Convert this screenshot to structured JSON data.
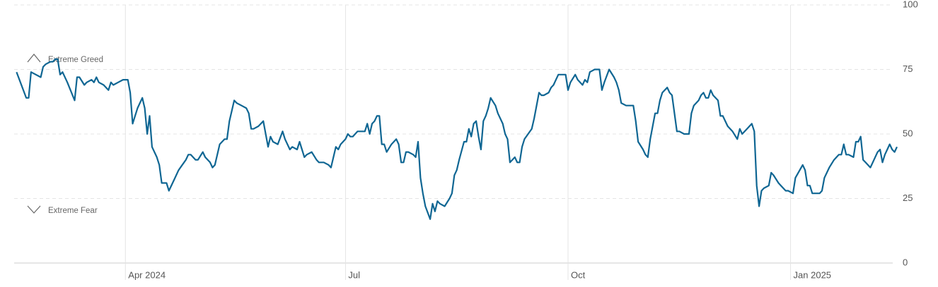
{
  "chart_data": {
    "type": "line",
    "annotations": [
      "Extreme Greed",
      "Extreme Fear"
    ],
    "x": [
      1,
      5,
      6,
      7,
      11,
      12,
      13,
      15,
      16,
      17,
      18,
      19,
      20,
      22,
      25,
      26,
      27,
      29,
      30,
      32,
      33,
      34,
      35,
      37,
      39,
      40,
      41,
      43,
      45,
      47,
      48,
      49,
      51,
      53,
      54,
      55,
      56,
      57,
      59,
      60,
      61,
      63,
      64,
      66,
      68,
      71,
      72,
      73,
      75,
      76,
      78,
      79,
      81,
      82,
      83,
      85,
      87,
      88,
      89,
      90,
      91,
      92,
      94,
      96,
      97,
      98,
      99,
      101,
      103,
      105,
      106,
      107,
      109,
      111,
      112,
      114,
      115,
      117,
      118,
      119,
      120,
      121,
      123,
      125,
      126,
      128,
      130,
      131,
      133,
      134,
      135,
      137,
      138,
      139,
      140,
      142,
      145,
      146,
      147,
      148,
      149,
      150,
      151,
      152,
      153,
      154,
      156,
      158,
      159,
      160,
      161,
      162,
      163,
      165,
      166,
      167,
      168,
      169,
      170,
      172,
      173,
      174,
      175,
      176,
      178,
      180,
      181,
      182,
      183,
      184,
      186,
      187,
      188,
      189,
      190,
      191,
      192,
      193,
      194,
      195,
      196,
      197,
      199,
      200,
      202,
      203,
      204,
      205,
      206,
      207,
      208,
      209,
      210,
      211,
      214,
      215,
      217,
      218,
      219,
      221,
      222,
      223,
      224,
      225,
      228,
      229,
      230,
      232,
      233,
      235,
      236,
      237,
      238,
      240,
      242,
      243,
      244,
      246,
      248,
      249,
      250,
      251,
      253,
      254,
      256,
      257,
      258,
      260,
      261,
      262,
      263,
      265,
      266,
      267,
      268,
      270,
      271,
      272,
      274,
      275,
      277,
      279,
      280,
      281,
      283,
      284,
      285,
      286,
      287,
      288,
      289,
      291,
      292,
      293,
      295,
      297,
      299,
      300,
      301,
      303,
      305,
      306,
      307,
      308,
      309,
      310,
      312,
      313,
      314,
      316,
      317,
      319,
      320,
      322,
      323,
      326,
      327,
      328,
      329,
      330,
      331,
      333,
      334,
      335,
      337,
      339,
      341,
      342,
      343,
      344,
      345,
      347,
      348,
      349,
      350,
      351,
      352,
      354,
      355,
      357,
      358,
      359,
      360,
      361,
      362,
      363,
      364,
      365
    ],
    "values": [
      74,
      64,
      64,
      74,
      72,
      76,
      77,
      78,
      78,
      79,
      79,
      73,
      74,
      70,
      63,
      72,
      72,
      69,
      70,
      71,
      70,
      72,
      70,
      69,
      67,
      70,
      69,
      70,
      71,
      71,
      66,
      54,
      60,
      64,
      60,
      50,
      57,
      45,
      41,
      38,
      31,
      31,
      28,
      32,
      36,
      40,
      42,
      42,
      40,
      40,
      43,
      41,
      39,
      37,
      38,
      46,
      48,
      48,
      55,
      59,
      63,
      62,
      61,
      60,
      58,
      52,
      52,
      53,
      55,
      45,
      49,
      47,
      46,
      51,
      48,
      44,
      45,
      44,
      47,
      44,
      41,
      42,
      43,
      40,
      39,
      39,
      38,
      37,
      45,
      44,
      46,
      48,
      50,
      49,
      49,
      51,
      51,
      54,
      50,
      54,
      55,
      57,
      57,
      46,
      46,
      43,
      46,
      48,
      46,
      39,
      39,
      43,
      43,
      42,
      41,
      47,
      33,
      27,
      22,
      17,
      23,
      20,
      24,
      23,
      22,
      25,
      27,
      34,
      36,
      40,
      47,
      47,
      52,
      49,
      54,
      55,
      49,
      44,
      55,
      57,
      60,
      64,
      61,
      58,
      54,
      50,
      48,
      39,
      40,
      41,
      39,
      39,
      45,
      48,
      52,
      56,
      66,
      65,
      65,
      66,
      68,
      69,
      71,
      73,
      73,
      67,
      70,
      73,
      71,
      69,
      71,
      70,
      74,
      75,
      75,
      67,
      70,
      75,
      72,
      70,
      67,
      62,
      61,
      61,
      61,
      55,
      47,
      44,
      42,
      41,
      48,
      58,
      58,
      63,
      66,
      68,
      66,
      65,
      51,
      51,
      50,
      50,
      58,
      61,
      63,
      65,
      66,
      64,
      64,
      67,
      65,
      63,
      57,
      57,
      53,
      51,
      48,
      52,
      50,
      52,
      54,
      51,
      30,
      22,
      28,
      29,
      30,
      35,
      34,
      31,
      30,
      28,
      28,
      27,
      33,
      38,
      36,
      30,
      30,
      27,
      27,
      27,
      28,
      33,
      37,
      40,
      42,
      42,
      46,
      42,
      42,
      41,
      47,
      47,
      49,
      40,
      39,
      37,
      39,
      43,
      44,
      39,
      42,
      44,
      46,
      44,
      43,
      45
    ],
    "color": "#0f6693",
    "xlim": [
      0,
      365
    ],
    "xticks": [
      {
        "value": 46,
        "label": "Apr 2024"
      },
      {
        "value": 137,
        "label": "Jul"
      },
      {
        "value": 229,
        "label": "Oct"
      },
      {
        "value": 321,
        "label": "Jan 2025"
      }
    ],
    "ylim": [
      0,
      100
    ],
    "yticks": [
      0,
      25,
      50,
      75,
      100
    ],
    "grid": true
  }
}
